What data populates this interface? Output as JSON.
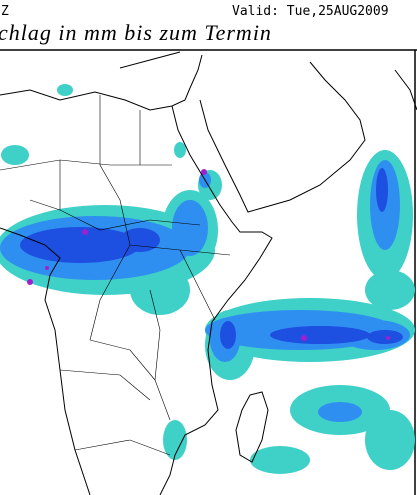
{
  "header": {
    "left": "Z",
    "valid": "Valid: Tue,25AUG2009"
  },
  "title": "chlag in mm bis zum Termin"
}
